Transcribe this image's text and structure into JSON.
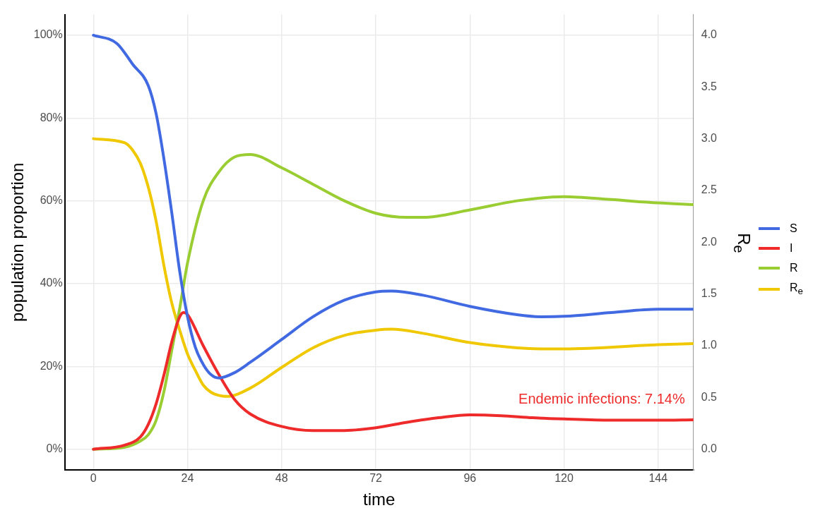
{
  "chart_data": {
    "type": "line",
    "xlabel": "time",
    "ylabel": "population proportion",
    "y2label": "R$_{e}$",
    "xlim": [
      -7.3,
      153
    ],
    "xticks": [
      0,
      24,
      48,
      72,
      96,
      120,
      144
    ],
    "ylim": [
      -5,
      105
    ],
    "yticks": [
      {
        "value": 0,
        "label": "0%"
      },
      {
        "value": 20,
        "label": "20%"
      },
      {
        "value": 40,
        "label": "40%"
      },
      {
        "value": 60,
        "label": "60%"
      },
      {
        "value": 80,
        "label": "80%"
      },
      {
        "value": 100,
        "label": "100%"
      }
    ],
    "y2lim": [
      -0.2,
      4.2
    ],
    "y2ticks": [
      {
        "value": 0,
        "label": "0.0"
      },
      {
        "value": 0.5,
        "label": "0.5"
      },
      {
        "value": 1,
        "label": "1.0"
      },
      {
        "value": 1.5,
        "label": "1.5"
      },
      {
        "value": 2,
        "label": "2.0"
      },
      {
        "value": 2.5,
        "label": "2.5"
      },
      {
        "value": 3,
        "label": "3.0"
      },
      {
        "value": 3.5,
        "label": "3.5"
      },
      {
        "value": 4,
        "label": "4.0"
      }
    ],
    "grid": true,
    "legend": "right",
    "marker": "none",
    "line_style": "solid",
    "series": [
      {
        "name": "S",
        "color": "#4169e1",
        "x": [
          0,
          6,
          10,
          14,
          16,
          18,
          20,
          22,
          24,
          26,
          28,
          30,
          32,
          36,
          40,
          48,
          56,
          64,
          72,
          76,
          84,
          96,
          108,
          114,
          120,
          132,
          144,
          153
        ],
        "values": [
          100,
          98,
          93,
          87.8,
          81,
          70,
          57,
          43,
          32,
          24.6,
          20.5,
          18,
          17.2,
          18.5,
          21,
          26.5,
          32,
          36,
          38,
          38.2,
          37.2,
          34.5,
          32.5,
          32,
          32.1,
          33,
          33.8,
          33.8
        ]
      },
      {
        "name": "I",
        "color": "#ee2a2a",
        "x": [
          0,
          8,
          12,
          14,
          16,
          18,
          20,
          22,
          23,
          24,
          28,
          32,
          36,
          40,
          48,
          56,
          64,
          72,
          80,
          88,
          96,
          104,
          112,
          120,
          132,
          144,
          153
        ],
        "values": [
          0,
          1,
          3,
          6,
          11,
          18,
          26,
          32,
          33,
          32.5,
          25,
          18,
          12,
          8.5,
          5.5,
          4.5,
          4.5,
          5.2,
          6.5,
          7.6,
          8.3,
          8.1,
          7.6,
          7.3,
          7,
          7,
          7.1
        ]
      },
      {
        "name": "R",
        "color": "#9acd32",
        "x": [
          0,
          8,
          12,
          14,
          16,
          18,
          20,
          22,
          24,
          28,
          32,
          36,
          40,
          48,
          56,
          64,
          72,
          80,
          84,
          96,
          108,
          120,
          132,
          144,
          153
        ],
        "values": [
          0,
          0.5,
          2,
          3.5,
          7,
          14,
          24,
          34,
          45,
          60,
          67,
          70.6,
          71.2,
          68,
          64,
          60,
          57,
          56,
          56,
          57.8,
          60,
          61,
          60.3,
          59.5,
          59.1
        ]
      },
      {
        "name": "R$_{e}$",
        "color": "#f0c800",
        "axis": "y2",
        "x": [
          0,
          8,
          10,
          12,
          14,
          16,
          18,
          20,
          22,
          24,
          26,
          28,
          30,
          32,
          34,
          40,
          48,
          56,
          64,
          72,
          76,
          84,
          96,
          108,
          114,
          120,
          144,
          153
        ],
        "values": [
          3.0,
          2.96,
          2.89,
          2.76,
          2.53,
          2.2,
          1.77,
          1.41,
          1.15,
          0.92,
          0.76,
          0.62,
          0.55,
          0.52,
          0.51,
          0.59,
          0.79,
          0.98,
          1.1,
          1.15,
          1.16,
          1.12,
          1.03,
          0.98,
          0.97,
          0.97,
          1.01,
          1.02
        ]
      }
    ],
    "annotations": [
      "Endemic infections: 7.14%"
    ]
  }
}
